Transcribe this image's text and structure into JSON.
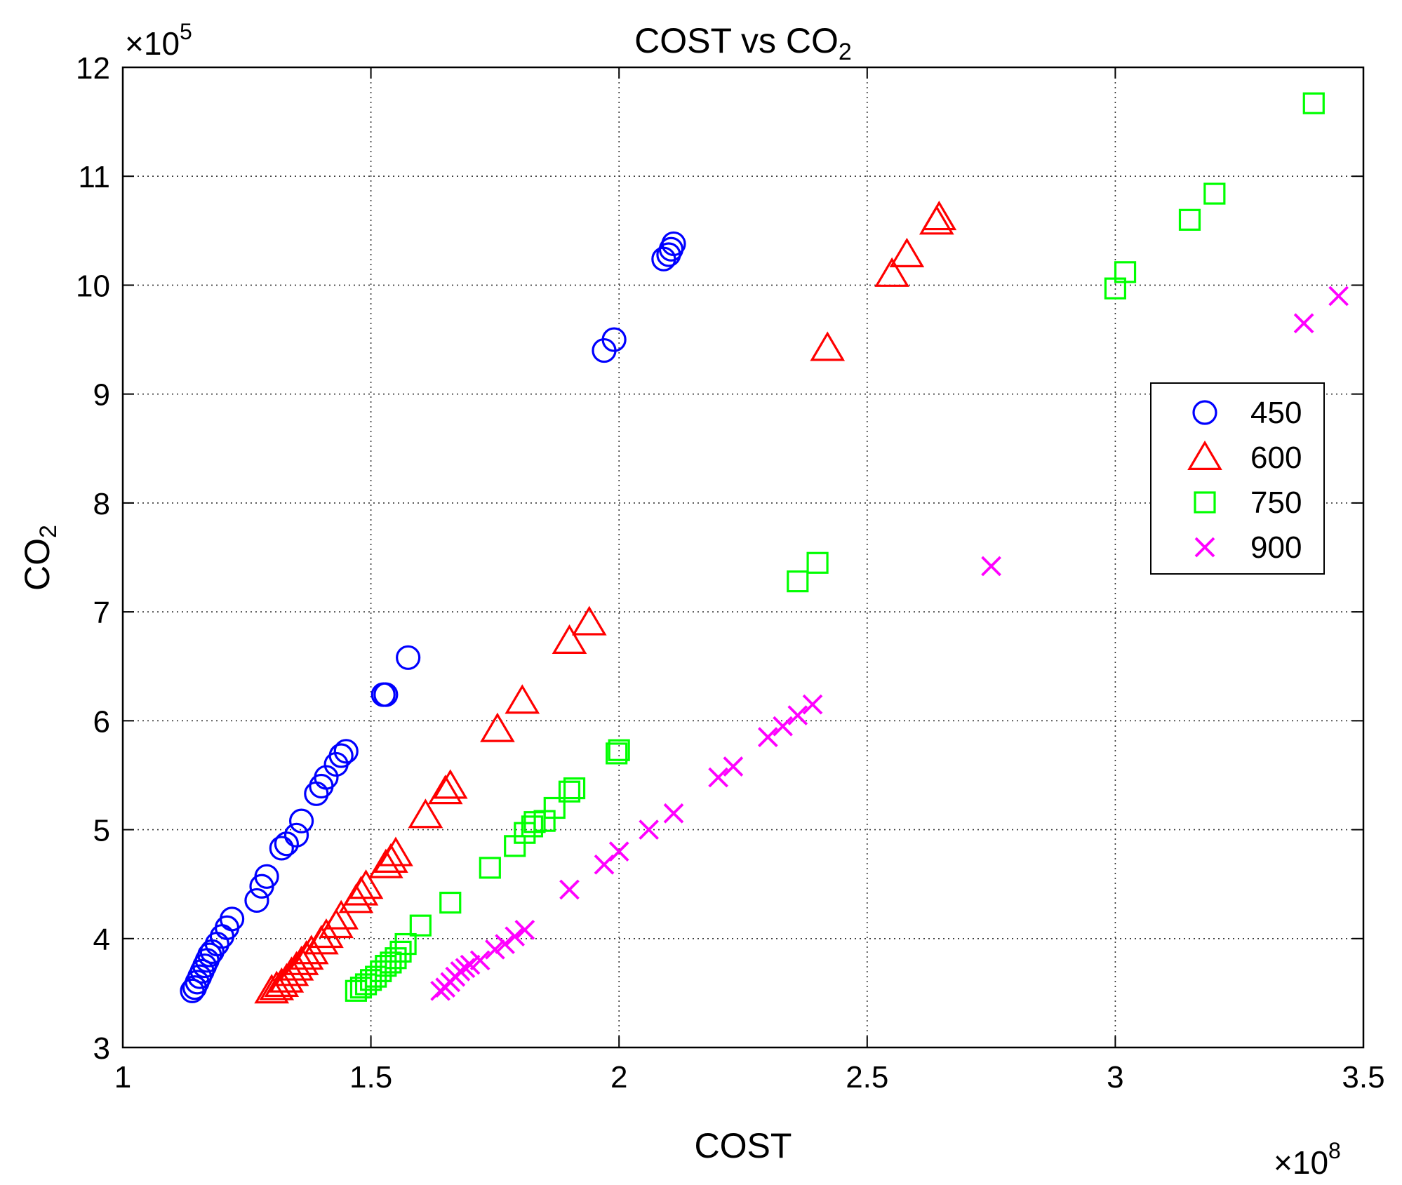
{
  "chart_data": {
    "type": "scatter",
    "title": "COST vs CO",
    "title_subscript": "2",
    "xlabel": "COST",
    "ylabel": "CO",
    "ylabel_subscript": "2",
    "x_exponent": {
      "base": "×10",
      "power": "8"
    },
    "y_exponent": {
      "base": "×10",
      "power": "5"
    },
    "xlim": [
      1,
      3.5
    ],
    "ylim": [
      3,
      12
    ],
    "xticks": [
      "1",
      "1.5",
      "2",
      "2.5",
      "3",
      "3.5"
    ],
    "yticks": [
      "3",
      "4",
      "5",
      "6",
      "7",
      "8",
      "9",
      "10",
      "11",
      "12"
    ],
    "grid": true,
    "legend_position": "right",
    "series": [
      {
        "name": "450",
        "marker": "circle",
        "color": "#0000ff",
        "points": [
          [
            1.14,
            3.52
          ],
          [
            1.145,
            3.55
          ],
          [
            1.15,
            3.6
          ],
          [
            1.155,
            3.65
          ],
          [
            1.16,
            3.7
          ],
          [
            1.165,
            3.75
          ],
          [
            1.17,
            3.8
          ],
          [
            1.175,
            3.85
          ],
          [
            1.18,
            3.88
          ],
          [
            1.19,
            3.95
          ],
          [
            1.2,
            4.02
          ],
          [
            1.21,
            4.1
          ],
          [
            1.22,
            4.18
          ],
          [
            1.27,
            4.35
          ],
          [
            1.28,
            4.48
          ],
          [
            1.29,
            4.57
          ],
          [
            1.32,
            4.83
          ],
          [
            1.33,
            4.87
          ],
          [
            1.35,
            4.95
          ],
          [
            1.36,
            5.08
          ],
          [
            1.39,
            5.33
          ],
          [
            1.4,
            5.4
          ],
          [
            1.41,
            5.48
          ],
          [
            1.43,
            5.6
          ],
          [
            1.44,
            5.68
          ],
          [
            1.45,
            5.72
          ],
          [
            1.525,
            6.24
          ],
          [
            1.53,
            6.24
          ],
          [
            1.575,
            6.58
          ],
          [
            1.97,
            9.4
          ],
          [
            1.99,
            9.5
          ],
          [
            2.09,
            10.24
          ],
          [
            2.1,
            10.28
          ],
          [
            2.105,
            10.33
          ],
          [
            2.11,
            10.38
          ]
        ]
      },
      {
        "name": "600",
        "marker": "triangle",
        "color": "#ff0000",
        "points": [
          [
            1.3,
            3.52
          ],
          [
            1.31,
            3.55
          ],
          [
            1.32,
            3.58
          ],
          [
            1.33,
            3.62
          ],
          [
            1.34,
            3.68
          ],
          [
            1.35,
            3.73
          ],
          [
            1.36,
            3.78
          ],
          [
            1.37,
            3.83
          ],
          [
            1.38,
            3.88
          ],
          [
            1.4,
            3.97
          ],
          [
            1.41,
            4.03
          ],
          [
            1.43,
            4.12
          ],
          [
            1.44,
            4.2
          ],
          [
            1.47,
            4.35
          ],
          [
            1.48,
            4.42
          ],
          [
            1.49,
            4.48
          ],
          [
            1.53,
            4.67
          ],
          [
            1.54,
            4.72
          ],
          [
            1.55,
            4.78
          ],
          [
            1.61,
            5.13
          ],
          [
            1.65,
            5.35
          ],
          [
            1.66,
            5.4
          ],
          [
            1.755,
            5.92
          ],
          [
            1.805,
            6.18
          ],
          [
            1.9,
            6.73
          ],
          [
            1.94,
            6.9
          ],
          [
            2.42,
            9.42
          ],
          [
            2.55,
            10.1
          ],
          [
            2.58,
            10.28
          ],
          [
            2.64,
            10.58
          ],
          [
            2.645,
            10.62
          ]
        ]
      },
      {
        "name": "750",
        "marker": "square",
        "color": "#00ff00",
        "points": [
          [
            1.47,
            3.52
          ],
          [
            1.48,
            3.55
          ],
          [
            1.49,
            3.58
          ],
          [
            1.5,
            3.62
          ],
          [
            1.51,
            3.65
          ],
          [
            1.52,
            3.7
          ],
          [
            1.53,
            3.75
          ],
          [
            1.54,
            3.78
          ],
          [
            1.55,
            3.82
          ],
          [
            1.56,
            3.88
          ],
          [
            1.57,
            3.95
          ],
          [
            1.6,
            4.12
          ],
          [
            1.66,
            4.33
          ],
          [
            1.74,
            4.65
          ],
          [
            1.79,
            4.85
          ],
          [
            1.81,
            4.97
          ],
          [
            1.825,
            5.03
          ],
          [
            1.83,
            5.07
          ],
          [
            1.85,
            5.08
          ],
          [
            1.87,
            5.2
          ],
          [
            1.9,
            5.35
          ],
          [
            1.91,
            5.38
          ],
          [
            1.995,
            5.7
          ],
          [
            2.0,
            5.73
          ],
          [
            2.36,
            7.28
          ],
          [
            2.4,
            7.45
          ],
          [
            3.0,
            9.97
          ],
          [
            3.02,
            10.12
          ],
          [
            3.15,
            10.6
          ],
          [
            3.2,
            10.84
          ],
          [
            3.4,
            11.67
          ]
        ]
      },
      {
        "name": "900",
        "marker": "x",
        "color": "#ff00ff",
        "points": [
          [
            1.64,
            3.52
          ],
          [
            1.65,
            3.55
          ],
          [
            1.66,
            3.6
          ],
          [
            1.67,
            3.65
          ],
          [
            1.68,
            3.7
          ],
          [
            1.69,
            3.73
          ],
          [
            1.7,
            3.76
          ],
          [
            1.72,
            3.8
          ],
          [
            1.75,
            3.9
          ],
          [
            1.77,
            3.95
          ],
          [
            1.79,
            4.02
          ],
          [
            1.81,
            4.08
          ],
          [
            1.9,
            4.45
          ],
          [
            1.97,
            4.68
          ],
          [
            2.0,
            4.8
          ],
          [
            2.06,
            5.0
          ],
          [
            2.11,
            5.15
          ],
          [
            2.2,
            5.48
          ],
          [
            2.23,
            5.58
          ],
          [
            2.3,
            5.85
          ],
          [
            2.33,
            5.95
          ],
          [
            2.36,
            6.05
          ],
          [
            2.39,
            6.15
          ],
          [
            2.75,
            7.42
          ],
          [
            3.38,
            9.65
          ],
          [
            3.45,
            9.9
          ]
        ]
      }
    ]
  }
}
